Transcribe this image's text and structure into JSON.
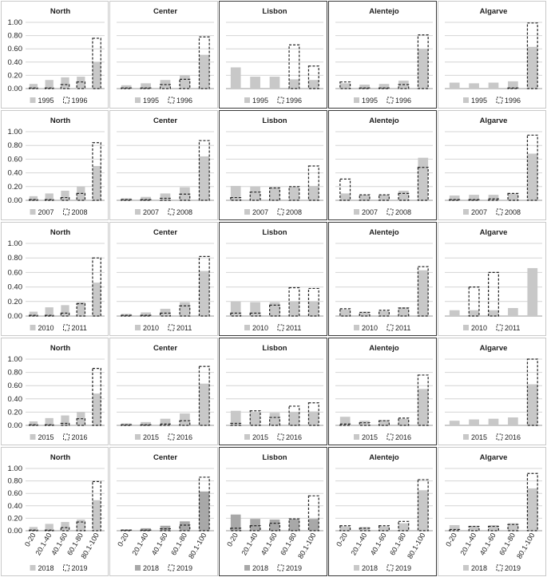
{
  "region_titles": [
    "North",
    "Center",
    "Lisbon",
    "Alentejo",
    "Algarve"
  ],
  "categories": [
    "0-20",
    "20.1-40",
    "40.1-60",
    "60.1-80",
    "80.1-100"
  ],
  "y_ticks": [
    "0.00",
    "0.20",
    "0.40",
    "0.60",
    "0.80",
    "1.00"
  ],
  "colors": {
    "solid_bar": "#c8c8c8",
    "solid_bar_dark": "#a8a8a8",
    "dashed_outline": "#222222",
    "gridline": "#d4d4d4"
  },
  "chart_data": [
    {
      "type": "bar",
      "row": 0,
      "col": 0,
      "title": "North",
      "categories": [
        "0-20",
        "20.1-40",
        "40.1-60",
        "60.1-80",
        "80.1-100"
      ],
      "ylim": [
        0,
        1
      ],
      "series": [
        {
          "name": "1995",
          "style": "solid",
          "values": [
            0.07,
            0.13,
            0.17,
            0.18,
            0.4
          ]
        },
        {
          "name": "1996",
          "style": "dashed",
          "values": [
            0.01,
            0.01,
            0.06,
            0.1,
            0.76
          ]
        }
      ]
    },
    {
      "type": "bar",
      "row": 0,
      "col": 1,
      "title": "Center",
      "categories": [
        "0-20",
        "20.1-40",
        "40.1-60",
        "60.1-80",
        "80.1-100"
      ],
      "ylim": [
        0,
        1
      ],
      "series": [
        {
          "name": "1995",
          "style": "solid",
          "values": [
            0.05,
            0.08,
            0.13,
            0.2,
            0.51
          ]
        },
        {
          "name": "1996",
          "style": "dashed",
          "values": [
            0.01,
            0.01,
            0.06,
            0.14,
            0.78
          ]
        }
      ]
    },
    {
      "type": "bar",
      "row": 0,
      "col": 2,
      "title": "Lisbon",
      "categories": [
        "0-20",
        "20.1-40",
        "40.1-60",
        "60.1-80",
        "80.1-100"
      ],
      "ylim": [
        0,
        1
      ],
      "series": [
        {
          "name": "1995",
          "style": "solid",
          "values": [
            0.32,
            0.18,
            0.18,
            0.14,
            0.13
          ]
        },
        {
          "name": "1996",
          "style": "dashed",
          "values": [
            0,
            0,
            0,
            0.66,
            0.34
          ]
        }
      ]
    },
    {
      "type": "bar",
      "row": 0,
      "col": 3,
      "title": "Alentejo",
      "categories": [
        "0-20",
        "20.1-40",
        "40.1-60",
        "60.1-80",
        "80.1-100"
      ],
      "ylim": [
        0,
        1
      ],
      "series": [
        {
          "name": "1995",
          "style": "solid",
          "values": [
            0.08,
            0.06,
            0.07,
            0.12,
            0.6
          ]
        },
        {
          "name": "1996",
          "style": "dashed",
          "values": [
            0.1,
            0.01,
            0.01,
            0.06,
            0.81
          ]
        }
      ]
    },
    {
      "type": "bar",
      "row": 0,
      "col": 4,
      "title": "Algarve",
      "categories": [
        "0-20",
        "20.1-40",
        "40.1-60",
        "60.1-80",
        "80.1-100"
      ],
      "ylim": [
        0,
        1
      ],
      "series": [
        {
          "name": "1995",
          "style": "solid",
          "values": [
            0.09,
            0.08,
            0.09,
            0.11,
            0.63
          ]
        },
        {
          "name": "1996",
          "style": "dashed",
          "values": [
            0,
            0,
            0,
            0.01,
            0.99
          ]
        }
      ]
    },
    {
      "type": "bar",
      "row": 1,
      "col": 0,
      "title": "North",
      "categories": [
        "0-20",
        "20.1-40",
        "40.1-60",
        "60.1-80",
        "80.1-100"
      ],
      "ylim": [
        0,
        1
      ],
      "series": [
        {
          "name": "2007",
          "style": "solid",
          "values": [
            0.06,
            0.1,
            0.14,
            0.2,
            0.5
          ]
        },
        {
          "name": "2008",
          "style": "dashed",
          "values": [
            0.01,
            0.01,
            0.04,
            0.1,
            0.84
          ]
        }
      ]
    },
    {
      "type": "bar",
      "row": 1,
      "col": 1,
      "title": "Center",
      "categories": [
        "0-20",
        "20.1-40",
        "40.1-60",
        "60.1-80",
        "80.1-100"
      ],
      "ylim": [
        0,
        1
      ],
      "series": [
        {
          "name": "2007",
          "style": "solid",
          "values": [
            0.03,
            0.05,
            0.1,
            0.19,
            0.64
          ]
        },
        {
          "name": "2008",
          "style": "dashed",
          "values": [
            0.01,
            0.01,
            0.03,
            0.09,
            0.87
          ]
        }
      ]
    },
    {
      "type": "bar",
      "row": 1,
      "col": 2,
      "title": "Lisbon",
      "categories": [
        "0-20",
        "20.1-40",
        "40.1-60",
        "60.1-80",
        "80.1-100"
      ],
      "ylim": [
        0,
        1
      ],
      "series": [
        {
          "name": "2007",
          "style": "solid",
          "values": [
            0.21,
            0.2,
            0.19,
            0.2,
            0.21
          ]
        },
        {
          "name": "2008",
          "style": "dashed",
          "values": [
            0.04,
            0.12,
            0.18,
            0.2,
            0.5
          ]
        }
      ]
    },
    {
      "type": "bar",
      "row": 1,
      "col": 3,
      "title": "Alentejo",
      "categories": [
        "0-20",
        "20.1-40",
        "40.1-60",
        "60.1-80",
        "80.1-100"
      ],
      "ylim": [
        0,
        1
      ],
      "series": [
        {
          "name": "2007",
          "style": "solid",
          "values": [
            0.1,
            0.08,
            0.08,
            0.14,
            0.62
          ]
        },
        {
          "name": "2008",
          "style": "dashed",
          "values": [
            0.31,
            0.08,
            0.08,
            0.1,
            0.48
          ]
        }
      ]
    },
    {
      "type": "bar",
      "row": 1,
      "col": 4,
      "title": "Algarve",
      "categories": [
        "0-20",
        "20.1-40",
        "40.1-60",
        "60.1-80",
        "80.1-100"
      ],
      "ylim": [
        0,
        1
      ],
      "series": [
        {
          "name": "2007",
          "style": "solid",
          "values": [
            0.07,
            0.08,
            0.08,
            0.1,
            0.68
          ]
        },
        {
          "name": "2008",
          "style": "dashed",
          "values": [
            0.01,
            0.01,
            0.02,
            0.1,
            0.95
          ]
        }
      ]
    },
    {
      "type": "bar",
      "row": 2,
      "col": 0,
      "title": "North",
      "categories": [
        "0-20",
        "20.1-40",
        "40.1-60",
        "60.1-80",
        "80.1-100"
      ],
      "ylim": [
        0,
        1
      ],
      "series": [
        {
          "name": "2010",
          "style": "solid",
          "values": [
            0.06,
            0.12,
            0.15,
            0.19,
            0.46
          ]
        },
        {
          "name": "2011",
          "style": "dashed",
          "values": [
            0.01,
            0.01,
            0.04,
            0.17,
            0.8
          ]
        }
      ]
    },
    {
      "type": "bar",
      "row": 2,
      "col": 1,
      "title": "Center",
      "categories": [
        "0-20",
        "20.1-40",
        "40.1-60",
        "60.1-80",
        "80.1-100"
      ],
      "ylim": [
        0,
        1
      ],
      "series": [
        {
          "name": "2010",
          "style": "solid",
          "values": [
            0.03,
            0.05,
            0.1,
            0.19,
            0.62
          ]
        },
        {
          "name": "2011",
          "style": "dashed",
          "values": [
            0.01,
            0.01,
            0.04,
            0.14,
            0.82
          ]
        }
      ]
    },
    {
      "type": "bar",
      "row": 2,
      "col": 2,
      "title": "Lisbon",
      "categories": [
        "0-20",
        "20.1-40",
        "40.1-60",
        "60.1-80",
        "80.1-100"
      ],
      "ylim": [
        0,
        1
      ],
      "series": [
        {
          "name": "2010",
          "style": "solid",
          "values": [
            0.2,
            0.19,
            0.19,
            0.2,
            0.2
          ]
        },
        {
          "name": "2011",
          "style": "dashed",
          "values": [
            0.04,
            0.04,
            0.15,
            0.39,
            0.38
          ]
        }
      ]
    },
    {
      "type": "bar",
      "row": 2,
      "col": 3,
      "title": "Alentejo",
      "categories": [
        "0-20",
        "20.1-40",
        "40.1-60",
        "60.1-80",
        "80.1-100"
      ],
      "ylim": [
        0,
        1
      ],
      "series": [
        {
          "name": "2010",
          "style": "solid",
          "values": [
            0.09,
            0.06,
            0.07,
            0.12,
            0.63
          ]
        },
        {
          "name": "2011",
          "style": "dashed",
          "values": [
            0.1,
            0.05,
            0.08,
            0.11,
            0.68
          ]
        }
      ]
    },
    {
      "type": "bar",
      "row": 2,
      "col": 4,
      "title": "Algarve",
      "categories": [
        "0-20",
        "20.1-40",
        "40.1-60",
        "60.1-80",
        "80.1-100"
      ],
      "ylim": [
        0,
        1
      ],
      "series": [
        {
          "name": "2010",
          "style": "solid",
          "values": [
            0.08,
            0.08,
            0.08,
            0.11,
            0.66
          ]
        },
        {
          "name": "2011",
          "style": "dashed",
          "values": [
            0,
            0.4,
            0.6,
            0,
            0
          ]
        }
      ]
    },
    {
      "type": "bar",
      "row": 3,
      "col": 0,
      "title": "North",
      "categories": [
        "0-20",
        "20.1-40",
        "40.1-60",
        "60.1-80",
        "80.1-100"
      ],
      "ylim": [
        0,
        1
      ],
      "series": [
        {
          "name": "2015",
          "style": "solid",
          "values": [
            0.06,
            0.11,
            0.15,
            0.2,
            0.48
          ]
        },
        {
          "name": "2016",
          "style": "dashed",
          "values": [
            0.01,
            0.01,
            0.03,
            0.1,
            0.86
          ]
        }
      ]
    },
    {
      "type": "bar",
      "row": 3,
      "col": 1,
      "title": "Center",
      "categories": [
        "0-20",
        "20.1-40",
        "40.1-60",
        "60.1-80",
        "80.1-100"
      ],
      "ylim": [
        0,
        1
      ],
      "series": [
        {
          "name": "2015",
          "style": "solid",
          "values": [
            0.03,
            0.05,
            0.1,
            0.18,
            0.63
          ]
        },
        {
          "name": "2016",
          "style": "dashed",
          "values": [
            0.01,
            0.01,
            0.02,
            0.07,
            0.89
          ]
        }
      ]
    },
    {
      "type": "bar",
      "row": 3,
      "col": 2,
      "title": "Lisbon",
      "categories": [
        "0-20",
        "20.1-40",
        "40.1-60",
        "60.1-80",
        "80.1-100"
      ],
      "ylim": [
        0,
        1
      ],
      "series": [
        {
          "name": "2015",
          "style": "solid",
          "values": [
            0.22,
            0.2,
            0.19,
            0.2,
            0.21
          ]
        },
        {
          "name": "2016",
          "style": "dashed",
          "values": [
            0.03,
            0.22,
            0.12,
            0.29,
            0.34
          ]
        }
      ]
    },
    {
      "type": "bar",
      "row": 3,
      "col": 3,
      "title": "Alentejo",
      "categories": [
        "0-20",
        "20.1-40",
        "40.1-60",
        "60.1-80",
        "80.1-100"
      ],
      "ylim": [
        0,
        1
      ],
      "series": [
        {
          "name": "2015",
          "style": "solid",
          "values": [
            0.13,
            0.07,
            0.08,
            0.1,
            0.55
          ]
        },
        {
          "name": "2016",
          "style": "dashed",
          "values": [
            0.02,
            0.04,
            0.07,
            0.11,
            0.76
          ]
        }
      ]
    },
    {
      "type": "bar",
      "row": 3,
      "col": 4,
      "title": "Algarve",
      "categories": [
        "0-20",
        "20.1-40",
        "40.1-60",
        "60.1-80",
        "80.1-100"
      ],
      "ylim": [
        0,
        1
      ],
      "series": [
        {
          "name": "2015",
          "style": "solid",
          "values": [
            0.07,
            0.09,
            0.1,
            0.12,
            0.62
          ]
        },
        {
          "name": "2016",
          "style": "dashed",
          "values": [
            0,
            0,
            0,
            0,
            1.0
          ]
        }
      ]
    },
    {
      "type": "bar",
      "row": 4,
      "col": 0,
      "title": "North",
      "categories": [
        "0-20",
        "20.1-40",
        "40.1-60",
        "60.1-80",
        "80.1-100"
      ],
      "ylim": [
        0,
        1
      ],
      "series": [
        {
          "name": "2018",
          "style": "solid",
          "values": [
            0.06,
            0.11,
            0.14,
            0.18,
            0.49
          ]
        },
        {
          "name": "2019",
          "style": "dashed",
          "values": [
            0.01,
            0.01,
            0.05,
            0.14,
            0.79
          ]
        }
      ]
    },
    {
      "type": "bar",
      "row": 4,
      "col": 1,
      "title": "Center",
      "categories": [
        "0-20",
        "20.1-40",
        "40.1-60",
        "60.1-80",
        "80.1-100"
      ],
      "ylim": [
        0,
        1
      ],
      "series": [
        {
          "name": "2018",
          "style": "solid",
          "values": [
            0.02,
            0.04,
            0.08,
            0.15,
            0.63
          ]
        },
        {
          "name": "2019",
          "style": "dashed",
          "values": [
            0.01,
            0.01,
            0.03,
            0.09,
            0.86
          ]
        }
      ]
    },
    {
      "type": "bar",
      "row": 4,
      "col": 2,
      "title": "Lisbon",
      "categories": [
        "0-20",
        "20.1-40",
        "40.1-60",
        "60.1-80",
        "80.1-100"
      ],
      "ylim": [
        0,
        1
      ],
      "series": [
        {
          "name": "2018",
          "style": "solid",
          "values": [
            0.26,
            0.19,
            0.18,
            0.19,
            0.19
          ]
        },
        {
          "name": "2019",
          "style": "dashed",
          "values": [
            0.04,
            0.08,
            0.12,
            0.19,
            0.56
          ]
        }
      ]
    },
    {
      "type": "bar",
      "row": 4,
      "col": 3,
      "title": "Alentejo",
      "categories": [
        "0-20",
        "20.1-40",
        "40.1-60",
        "60.1-80",
        "80.1-100"
      ],
      "ylim": [
        0,
        1
      ],
      "series": [
        {
          "name": "2018",
          "style": "solid",
          "values": [
            0.07,
            0.06,
            0.07,
            0.12,
            0.65
          ]
        },
        {
          "name": "2019",
          "style": "dashed",
          "values": [
            0.08,
            0.04,
            0.08,
            0.15,
            0.82
          ]
        }
      ]
    },
    {
      "type": "bar",
      "row": 4,
      "col": 4,
      "title": "Algarve",
      "categories": [
        "0-20",
        "20.1-40",
        "40.1-60",
        "60.1-80",
        "80.1-100"
      ],
      "ylim": [
        0,
        1
      ],
      "series": [
        {
          "name": "2018",
          "style": "solid",
          "values": [
            0.09,
            0.08,
            0.09,
            0.12,
            0.68
          ]
        },
        {
          "name": "2019",
          "style": "dashed",
          "values": [
            0.02,
            0.07,
            0.07,
            0.1,
            0.92
          ]
        }
      ]
    }
  ]
}
